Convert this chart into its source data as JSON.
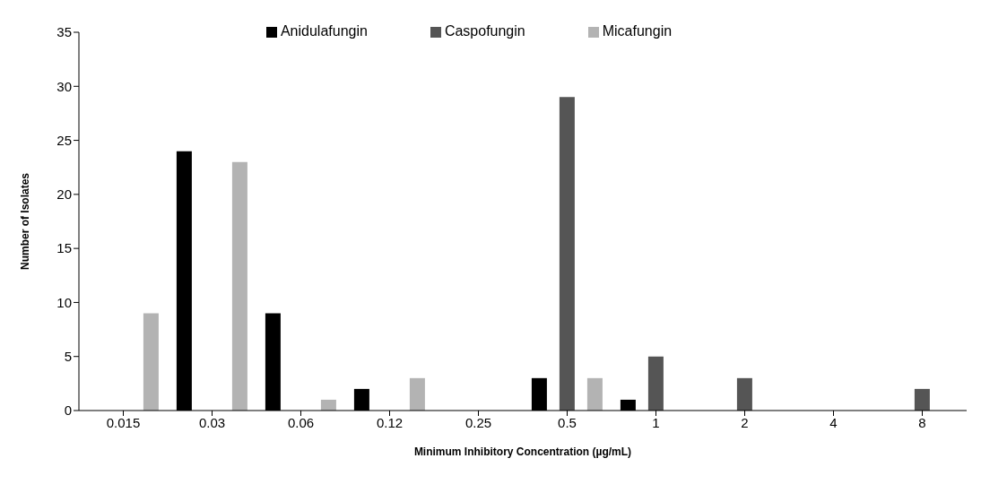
{
  "chart_data": {
    "type": "bar",
    "xlabel": "Minimum Inhibitory Concentration (µg/mL)",
    "ylabel": "Number of Isolates",
    "categories": [
      "0.015",
      "0.03",
      "0.06",
      "0.12",
      "0.25",
      "0.5",
      "1",
      "2",
      "4",
      "8"
    ],
    "series": [
      {
        "name": "Anidulafungin",
        "color": "#000000",
        "values": [
          0,
          24,
          9,
          2,
          0,
          3,
          1,
          0,
          0,
          0
        ]
      },
      {
        "name": "Caspofungin",
        "color": "#555555",
        "values": [
          0,
          0,
          0,
          0,
          0,
          29,
          5,
          3,
          0,
          2
        ]
      },
      {
        "name": "Micafungin",
        "color": "#b3b3b3",
        "values": [
          9,
          23,
          1,
          3,
          0,
          3,
          0,
          0,
          0,
          0
        ]
      }
    ],
    "ylim": [
      0,
      35
    ],
    "yticks": [
      0,
      5,
      10,
      15,
      20,
      25,
      30,
      35
    ],
    "grid": false,
    "legend": "top"
  }
}
